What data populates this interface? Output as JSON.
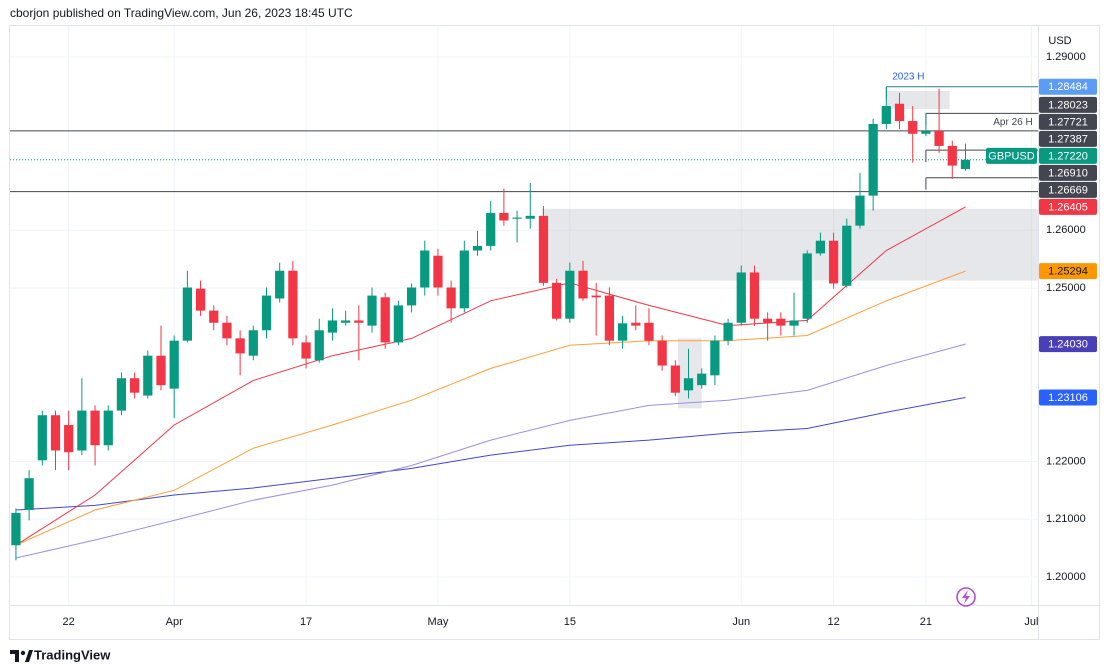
{
  "chart_data": {
    "type": "candlestick",
    "header": "cborjon published on TradingView.com, Jun 26, 2023 18:45 UTC",
    "y_unit": "USD",
    "up_color": "#089981",
    "down_color": "#f23645",
    "grid": true,
    "xlim": [
      -0.45,
      77.5
    ],
    "ylim": [
      1.19516,
      1.29535
    ],
    "xticks": [
      {
        "value": 4,
        "label": "22"
      },
      {
        "value": 12,
        "label": "Apr"
      },
      {
        "value": 22,
        "label": "17"
      },
      {
        "value": 32,
        "label": "May"
      },
      {
        "value": 42,
        "label": "15"
      },
      {
        "value": 55,
        "label": "Jun"
      },
      {
        "value": 62,
        "label": "12"
      },
      {
        "value": 69,
        "label": "21"
      },
      {
        "value": 77,
        "label": "Jul"
      }
    ],
    "yticks": [
      {
        "value": 1.29,
        "label": "1.29000"
      },
      {
        "value": 1.26,
        "label": "1.26000"
      },
      {
        "value": 1.25,
        "label": "1.25000"
      },
      {
        "value": 1.22,
        "label": "1.22000"
      },
      {
        "value": 1.21,
        "label": "1.21000"
      },
      {
        "value": 1.2,
        "label": "1.20000"
      }
    ],
    "open": [
      1.2055,
      1.2116,
      1.2202,
      1.228,
      1.2263,
      1.2219,
      1.2288,
      1.2228,
      1.2288,
      1.2344,
      1.2314,
      1.2383,
      1.2326,
      1.2409,
      1.2499,
      1.2461,
      1.244,
      1.2413,
      1.2383,
      1.2427,
      1.2482,
      1.253,
      1.2406,
      1.2375,
      1.2423,
      1.244,
      1.2444,
      1.2435,
      1.2484,
      1.2406,
      1.247,
      1.2501,
      1.2556,
      1.2501,
      1.2465,
      1.2565,
      1.2573,
      1.263,
      1.262,
      1.262,
      1.2625,
      1.2509,
      1.2447,
      1.253,
      1.2487,
      1.2487,
      1.2409,
      1.244,
      1.244,
      1.2409,
      1.2366,
      1.2323,
      1.2332,
      1.2349,
      1.2409,
      1.244,
      1.2527,
      1.2447,
      1.2447,
      1.2435,
      1.2447,
      1.256,
      1.2582,
      1.2504,
      1.2608,
      1.266,
      1.2784,
      1.2819,
      1.2789,
      1.2767,
      1.2772,
      1.2746,
      1.2706
    ],
    "high": [
      1.2119,
      1.2185,
      1.2288,
      1.2288,
      1.2288,
      1.2344,
      1.2297,
      1.2297,
      1.2354,
      1.2354,
      1.2392,
      1.2435,
      1.2418,
      1.253,
      1.2513,
      1.247,
      1.2452,
      1.2427,
      1.2435,
      1.2501,
      1.2544,
      1.2547,
      1.2418,
      1.2447,
      1.2465,
      1.2461,
      1.247,
      1.2501,
      1.2492,
      1.2478,
      1.2508,
      1.2582,
      1.2568,
      1.2513,
      1.2582,
      1.2599,
      1.2651,
      1.2672,
      1.2634,
      1.2682,
      1.2642,
      1.2516,
      1.2544,
      1.2547,
      1.2509,
      1.2501,
      1.2452,
      1.247,
      1.2465,
      1.2418,
      1.2375,
      1.2395,
      1.2361,
      1.2418,
      1.2447,
      1.2539,
      1.2539,
      1.2458,
      1.2458,
      1.2492,
      1.2565,
      1.2596,
      1.2596,
      1.262,
      1.2699,
      1.2793,
      1.2848,
      1.2838,
      1.2815,
      1.2803,
      1.2845,
      1.2755,
      1.275
    ],
    "low": [
      1.2029,
      1.2098,
      1.2193,
      1.2185,
      1.2185,
      1.2211,
      1.2193,
      1.2219,
      1.228,
      1.2309,
      1.2309,
      1.2323,
      1.2275,
      1.2406,
      1.2452,
      1.2427,
      1.2401,
      1.2349,
      1.2375,
      1.2413,
      1.2475,
      1.2401,
      1.2361,
      1.2371,
      1.2409,
      1.2435,
      1.2375,
      1.2423,
      1.2395,
      1.2401,
      1.2458,
      1.2487,
      1.2487,
      1.244,
      1.2458,
      1.2556,
      1.2565,
      1.2608,
      1.2579,
      1.2603,
      1.2504,
      1.2444,
      1.244,
      1.2478,
      1.2418,
      1.2401,
      1.2395,
      1.2427,
      1.2401,
      1.2357,
      1.2313,
      1.2309,
      1.2326,
      1.2332,
      1.2401,
      1.2435,
      1.2435,
      1.2409,
      1.2418,
      1.2418,
      1.244,
      1.2556,
      1.2499,
      1.2501,
      1.2603,
      1.2634,
      1.2775,
      1.2775,
      1.2717,
      1.2763,
      1.2734,
      1.2689,
      1.2703
    ],
    "close": [
      1.2111,
      1.2171,
      1.228,
      1.2219,
      1.2216,
      1.2288,
      1.2228,
      1.2288,
      1.2344,
      1.2319,
      1.2383,
      1.2332,
      1.2409,
      1.2501,
      1.2461,
      1.244,
      1.2413,
      1.2387,
      1.2427,
      1.2487,
      1.253,
      1.2413,
      1.2378,
      1.2427,
      1.2444,
      1.2444,
      1.244,
      1.2487,
      1.2406,
      1.247,
      1.2501,
      1.2565,
      1.2501,
      1.2465,
      1.2565,
      1.2573,
      1.263,
      1.2617,
      1.2622,
      1.2625,
      1.2509,
      1.2447,
      1.253,
      1.2482,
      1.2484,
      1.2409,
      1.2439,
      1.2435,
      1.2409,
      1.2366,
      1.2319,
      1.2344,
      1.2352,
      1.2409,
      1.244,
      1.2527,
      1.2447,
      1.244,
      1.2435,
      1.2444,
      1.256,
      1.2582,
      1.2508,
      1.2608,
      1.266,
      1.2784,
      1.2815,
      1.2789,
      1.2767,
      1.2772,
      1.2746,
      1.2712,
      1.2722
    ],
    "moving_averages": [
      {
        "color": "#3f48cc",
        "x": [
          0,
          6,
          12,
          18,
          24,
          30,
          36,
          42,
          48,
          54,
          60,
          66,
          72
        ],
        "values": [
          1.2116,
          1.2124,
          1.2142,
          1.2154,
          1.2171,
          1.2188,
          1.2211,
          1.2228,
          1.2237,
          1.2249,
          1.2257,
          1.2285,
          1.23106
        ]
      },
      {
        "color": "#9b8fe0",
        "x": [
          0,
          6,
          12,
          18,
          24,
          30,
          36,
          42,
          48,
          54,
          60,
          66,
          72
        ],
        "values": [
          1.2033,
          1.2064,
          1.2098,
          1.2133,
          1.2159,
          1.2193,
          1.2237,
          1.2271,
          1.2297,
          1.2306,
          1.2323,
          1.2366,
          1.2403
        ]
      },
      {
        "color": "#ff9f3a",
        "x": [
          0,
          6,
          12,
          18,
          24,
          30,
          36,
          42,
          48,
          54,
          60,
          66,
          72
        ],
        "values": [
          1.2055,
          1.2116,
          1.215,
          1.2223,
          1.2263,
          1.2306,
          1.2361,
          1.2401,
          1.2409,
          1.2409,
          1.2418,
          1.2478,
          1.25294
        ]
      },
      {
        "color": "#f23645",
        "x": [
          0,
          6,
          12,
          18,
          24,
          30,
          36,
          42,
          48,
          54,
          60,
          66,
          72
        ],
        "values": [
          1.2055,
          1.2142,
          1.2263,
          1.234,
          1.2383,
          1.2413,
          1.2478,
          1.2509,
          1.247,
          1.2435,
          1.2444,
          1.2565,
          1.26405
        ]
      }
    ],
    "zones": [
      {
        "top": 1.2637,
        "bottom": 1.2513,
        "start": 39.9,
        "end": 77.5
      },
      {
        "top": 1.2841,
        "bottom": 1.281,
        "start": 66,
        "end": 70.8
      },
      {
        "top": 1.2413,
        "bottom": 1.2292,
        "start": 50.2,
        "end": 52
      }
    ],
    "levels": [
      {
        "value": 1.28484,
        "color": "#2a7f8f",
        "start": 66,
        "text": "2023 H",
        "text_color": "#2962ff",
        "label_side": "start"
      },
      {
        "value": 1.28023,
        "color": "#434651",
        "start": 69,
        "text": "Apr 26 H",
        "text_color": "#434651",
        "label_side": "end"
      },
      {
        "value": 1.27721,
        "color": "#434651"
      },
      {
        "value": 1.27387,
        "color": "#434651",
        "start": 69
      },
      {
        "value": 1.2691,
        "color": "#434651",
        "start": 69
      },
      {
        "value": 1.26669,
        "color": "#434651"
      }
    ],
    "price_labels": [
      {
        "value": 1.28484,
        "label": "1.28484",
        "color": "#5b9cf6",
        "text_color": "#ffffff"
      },
      {
        "value": 1.28023,
        "label": "1.28023",
        "color": "#434651",
        "text_color": "#ffffff"
      },
      {
        "value": 1.27721,
        "label": "1.27721",
        "color": "#434651",
        "text_color": "#ffffff"
      },
      {
        "value": 1.27387,
        "label": "1.27387",
        "color": "#434651",
        "text_color": "#ffffff"
      },
      {
        "value": 1.2722,
        "label": "1.27220",
        "color": "#089981",
        "text_color": "#ffffff",
        "symbol": "GBPUSD"
      },
      {
        "value": 1.2691,
        "label": "1.26910",
        "color": "#434651",
        "text_color": "#ffffff"
      },
      {
        "value": 1.26669,
        "label": "1.26669",
        "color": "#434651",
        "text_color": "#ffffff"
      },
      {
        "value": 1.26405,
        "label": "1.26405",
        "color": "#f23645",
        "text_color": "#ffffff"
      },
      {
        "value": 1.25294,
        "label": "1.25294",
        "color": "#ff9800",
        "text_color": "#131722"
      },
      {
        "value": 1.2403,
        "label": "1.24030",
        "color": "#4a3fb8",
        "text_color": "#ffffff"
      },
      {
        "value": 1.23106,
        "label": "1.23106",
        "color": "#2962ff",
        "text_color": "#ffffff"
      }
    ]
  },
  "footer": "TradingView"
}
